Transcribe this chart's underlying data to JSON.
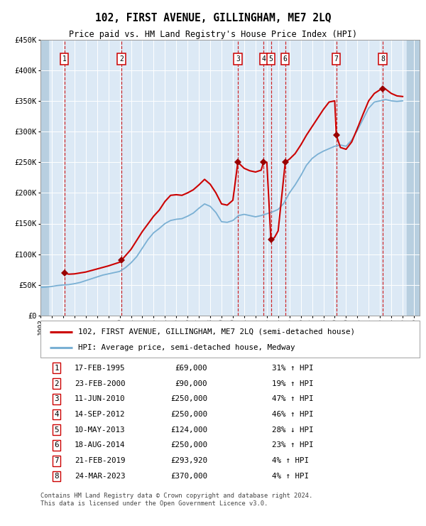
{
  "title": "102, FIRST AVENUE, GILLINGHAM, ME7 2LQ",
  "subtitle": "Price paid vs. HM Land Registry's House Price Index (HPI)",
  "sales": [
    {
      "num": 1,
      "date": "1995-02-17",
      "price": 69000
    },
    {
      "num": 2,
      "date": "2000-02-23",
      "price": 90000
    },
    {
      "num": 3,
      "date": "2010-06-11",
      "price": 250000
    },
    {
      "num": 4,
      "date": "2012-09-14",
      "price": 250000
    },
    {
      "num": 5,
      "date": "2013-05-10",
      "price": 124000
    },
    {
      "num": 6,
      "date": "2014-08-18",
      "price": 250000
    },
    {
      "num": 7,
      "date": "2019-02-21",
      "price": 293920
    },
    {
      "num": 8,
      "date": "2023-03-24",
      "price": 370000
    }
  ],
  "sale_dates_float": {
    "1": 1995.12,
    "2": 2000.15,
    "3": 2010.44,
    "4": 2012.71,
    "5": 2013.36,
    "6": 2014.63,
    "7": 2019.14,
    "8": 2023.23
  },
  "legend_property": "102, FIRST AVENUE, GILLINGHAM, ME7 2LQ (semi-detached house)",
  "legend_hpi": "HPI: Average price, semi-detached house, Medway",
  "table_rows": [
    {
      "num": 1,
      "date": "17-FEB-1995",
      "price": "£69,000",
      "pct": "31%",
      "dir": "↑",
      "label": "HPI"
    },
    {
      "num": 2,
      "date": "23-FEB-2000",
      "price": "£90,000",
      "pct": "19%",
      "dir": "↑",
      "label": "HPI"
    },
    {
      "num": 3,
      "date": "11-JUN-2010",
      "price": "£250,000",
      "pct": "47%",
      "dir": "↑",
      "label": "HPI"
    },
    {
      "num": 4,
      "date": "14-SEP-2012",
      "price": "£250,000",
      "pct": "46%",
      "dir": "↑",
      "label": "HPI"
    },
    {
      "num": 5,
      "date": "10-MAY-2013",
      "price": "£124,000",
      "pct": "28%",
      "dir": "↓",
      "label": "HPI"
    },
    {
      "num": 6,
      "date": "18-AUG-2014",
      "price": "£250,000",
      "pct": "23%",
      "dir": "↑",
      "label": "HPI"
    },
    {
      "num": 7,
      "date": "21-FEB-2019",
      "price": "£293,920",
      "pct": "4%",
      "dir": "↑",
      "label": "HPI"
    },
    {
      "num": 8,
      "date": "24-MAR-2023",
      "price": "£370,000",
      "pct": "4%",
      "dir": "↑",
      "label": "HPI"
    }
  ],
  "footer_line1": "Contains HM Land Registry data © Crown copyright and database right 2024.",
  "footer_line2": "This data is licensed under the Open Government Licence v3.0.",
  "property_line_color": "#cc0000",
  "hpi_line_color": "#7ab0d4",
  "background_color": "#dce9f5",
  "sale_marker_color": "#990000",
  "vline_color": "#cc0000",
  "hatch_color": "#b8cfe0",
  "ylim": [
    0,
    450000
  ],
  "xlim_start": 1993.0,
  "xlim_end": 2026.5,
  "hpi_curve": [
    [
      1993.0,
      46000
    ],
    [
      1993.5,
      46500
    ],
    [
      1994.0,
      47500
    ],
    [
      1994.5,
      49000
    ],
    [
      1995.0,
      50000
    ],
    [
      1995.5,
      50500
    ],
    [
      1996.0,
      52000
    ],
    [
      1996.5,
      54000
    ],
    [
      1997.0,
      57000
    ],
    [
      1997.5,
      60000
    ],
    [
      1998.0,
      63000
    ],
    [
      1998.5,
      66000
    ],
    [
      1999.0,
      68000
    ],
    [
      1999.5,
      70000
    ],
    [
      2000.0,
      72000
    ],
    [
      2000.5,
      78000
    ],
    [
      2001.0,
      86000
    ],
    [
      2001.5,
      96000
    ],
    [
      2002.0,
      110000
    ],
    [
      2002.5,
      124000
    ],
    [
      2003.0,
      135000
    ],
    [
      2003.5,
      142000
    ],
    [
      2004.0,
      150000
    ],
    [
      2004.5,
      155000
    ],
    [
      2005.0,
      157000
    ],
    [
      2005.5,
      158000
    ],
    [
      2006.0,
      162000
    ],
    [
      2006.5,
      167000
    ],
    [
      2007.0,
      175000
    ],
    [
      2007.5,
      182000
    ],
    [
      2008.0,
      178000
    ],
    [
      2008.5,
      168000
    ],
    [
      2009.0,
      153000
    ],
    [
      2009.5,
      152000
    ],
    [
      2010.0,
      155000
    ],
    [
      2010.5,
      163000
    ],
    [
      2011.0,
      165000
    ],
    [
      2011.5,
      163000
    ],
    [
      2012.0,
      161000
    ],
    [
      2012.5,
      163000
    ],
    [
      2013.0,
      166000
    ],
    [
      2013.5,
      169000
    ],
    [
      2014.0,
      173000
    ],
    [
      2014.5,
      183000
    ],
    [
      2015.0,
      200000
    ],
    [
      2015.5,
      213000
    ],
    [
      2016.0,
      228000
    ],
    [
      2016.5,
      245000
    ],
    [
      2017.0,
      256000
    ],
    [
      2017.5,
      263000
    ],
    [
      2018.0,
      268000
    ],
    [
      2018.5,
      272000
    ],
    [
      2019.0,
      276000
    ],
    [
      2019.5,
      278000
    ],
    [
      2020.0,
      276000
    ],
    [
      2020.5,
      286000
    ],
    [
      2021.0,
      302000
    ],
    [
      2021.5,
      320000
    ],
    [
      2022.0,
      338000
    ],
    [
      2022.5,
      348000
    ],
    [
      2023.0,
      350000
    ],
    [
      2023.5,
      352000
    ],
    [
      2024.0,
      350000
    ],
    [
      2024.5,
      349000
    ],
    [
      2025.0,
      350000
    ]
  ],
  "prop_curve": [
    [
      1995.12,
      69000
    ],
    [
      1995.5,
      67500
    ],
    [
      1996.0,
      68000
    ],
    [
      1997.0,
      71000
    ],
    [
      1998.0,
      76000
    ],
    [
      1999.0,
      81000
    ],
    [
      2000.0,
      87000
    ],
    [
      2000.15,
      90000
    ],
    [
      2001.0,
      108000
    ],
    [
      2002.0,
      137000
    ],
    [
      2003.0,
      162000
    ],
    [
      2003.5,
      172000
    ],
    [
      2004.0,
      186000
    ],
    [
      2004.5,
      196000
    ],
    [
      2005.0,
      197000
    ],
    [
      2005.5,
      196000
    ],
    [
      2006.0,
      200000
    ],
    [
      2006.5,
      205000
    ],
    [
      2007.0,
      213000
    ],
    [
      2007.5,
      222000
    ],
    [
      2008.0,
      214000
    ],
    [
      2008.5,
      200000
    ],
    [
      2009.0,
      182000
    ],
    [
      2009.5,
      180000
    ],
    [
      2010.0,
      188000
    ],
    [
      2010.44,
      250000
    ],
    [
      2010.6,
      247000
    ],
    [
      2011.0,
      240000
    ],
    [
      2011.5,
      236000
    ],
    [
      2012.0,
      234000
    ],
    [
      2012.5,
      237000
    ],
    [
      2012.71,
      250000
    ],
    [
      2013.0,
      250000
    ],
    [
      2013.36,
      124000
    ],
    [
      2013.5,
      124000
    ],
    [
      2013.7,
      128000
    ],
    [
      2014.0,
      138000
    ],
    [
      2014.63,
      250000
    ],
    [
      2015.0,
      255000
    ],
    [
      2015.5,
      264000
    ],
    [
      2016.0,
      278000
    ],
    [
      2016.5,
      294000
    ],
    [
      2017.0,
      308000
    ],
    [
      2017.5,
      322000
    ],
    [
      2018.0,
      336000
    ],
    [
      2018.5,
      348000
    ],
    [
      2019.0,
      350000
    ],
    [
      2019.14,
      293920
    ],
    [
      2019.5,
      274000
    ],
    [
      2020.0,
      271000
    ],
    [
      2020.5,
      283000
    ],
    [
      2021.0,
      305000
    ],
    [
      2021.5,
      328000
    ],
    [
      2022.0,
      350000
    ],
    [
      2022.5,
      362000
    ],
    [
      2023.0,
      368000
    ],
    [
      2023.23,
      370000
    ],
    [
      2023.5,
      369000
    ],
    [
      2024.0,
      362000
    ],
    [
      2024.5,
      358000
    ],
    [
      2025.0,
      357000
    ]
  ]
}
